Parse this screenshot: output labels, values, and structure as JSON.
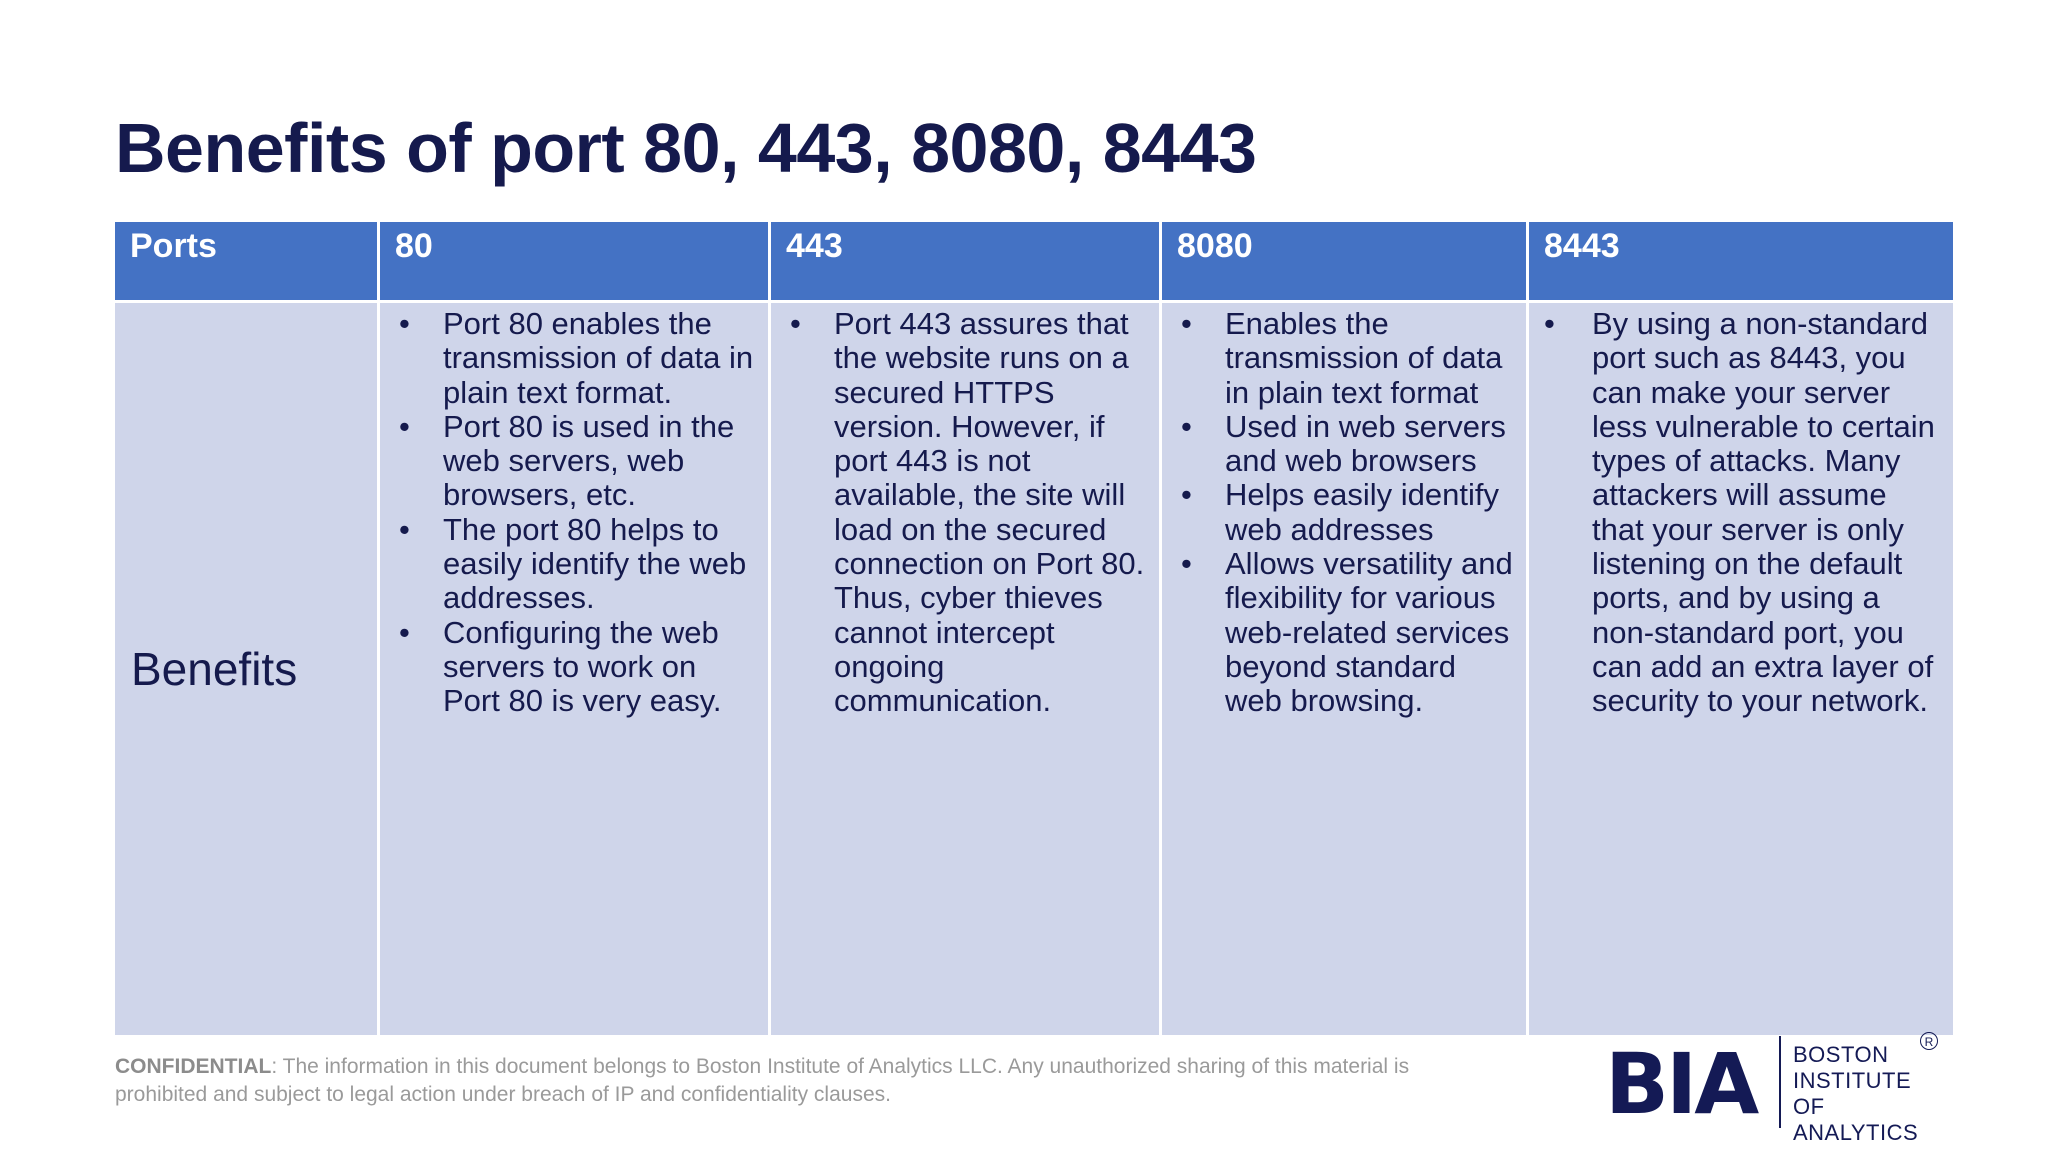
{
  "slide": {
    "title": "Benefits of port 80, 443, 8080, 8443"
  },
  "table": {
    "headers": [
      "Ports",
      "80",
      "443",
      "8080",
      "8443"
    ],
    "row_label": "Benefits",
    "port80": [
      "Port 80 enables the transmission of data in plain text format.",
      "Port 80 is used in the web servers, web browsers, etc.",
      "The port 80 helps to easily identify the web addresses.",
      "Configuring the web servers to work on Port 80 is very easy."
    ],
    "port443": [
      "Port 443 assures that the website runs on a secured HTTPS version. However, if port 443 is not available, the site will load on the secured connection on Port 80. Thus, cyber thieves cannot intercept ongoing communication."
    ],
    "port8080": [
      "Enables the transmission of data in plain text format",
      "Used in web servers and web browsers",
      "Helps easily identify web addresses",
      "Allows versatility and flexibility for various web-related services beyond standard web browsing."
    ],
    "port8443": "By using a non-standard port such as 8443, you can make your server less vulnerable to certain types of attacks. Many attackers will assume that your server is only listening on the default ports, and by using a non-standard port, you can add an extra layer of security to your network."
  },
  "footer": {
    "label": "CONFIDENTIAL",
    "text": ": The information in this document belongs to Boston Institute of Analytics LLC. Any unauthorized sharing of this material is prohibited and subject to legal action under breach of IP and confidentiality clauses."
  },
  "logo": {
    "mark": "BIA",
    "line1": "BOSTON",
    "line2": "INSTITUTE OF",
    "line3": "ANALYTICS",
    "reg": "R"
  },
  "bullet_glyph": "•"
}
